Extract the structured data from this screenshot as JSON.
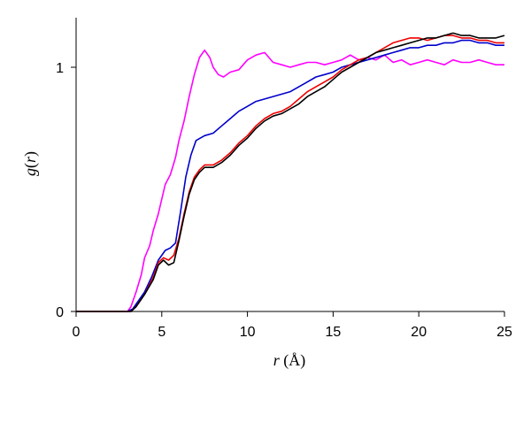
{
  "chart_data": {
    "type": "line",
    "xlabel": {
      "italic": "r",
      "rest": " (Å)"
    },
    "ylabel": {
      "prefix": "g(",
      "italic": "r",
      "suffix": ")"
    },
    "xlim": [
      0,
      25
    ],
    "ylim": [
      0,
      1.2
    ],
    "x_ticks": [
      0,
      5,
      10,
      15,
      20,
      25
    ],
    "y_ticks": [
      0,
      1
    ],
    "grid": false,
    "legend": "none",
    "series": [
      {
        "color": "#ff00ff",
        "x": [
          0,
          3.0,
          3.2,
          3.5,
          3.8,
          4.0,
          4.3,
          4.5,
          4.8,
          5.0,
          5.2,
          5.5,
          5.8,
          6.0,
          6.3,
          6.6,
          6.9,
          7.2,
          7.5,
          7.8,
          8.0,
          8.3,
          8.6,
          9.0,
          9.5,
          10.0,
          10.5,
          11.0,
          11.5,
          12.0,
          12.5,
          13.0,
          13.5,
          14.0,
          14.5,
          15.0,
          15.5,
          16.0,
          16.5,
          17.0,
          17.5,
          18.0,
          18.5,
          19.0,
          19.5,
          20.0,
          20.5,
          21.0,
          21.5,
          22.0,
          22.5,
          23.0,
          23.5,
          24.0,
          24.5,
          25.0
        ],
        "y": [
          0,
          0,
          0.02,
          0.08,
          0.15,
          0.22,
          0.27,
          0.33,
          0.4,
          0.46,
          0.52,
          0.56,
          0.63,
          0.7,
          0.78,
          0.88,
          0.97,
          1.04,
          1.07,
          1.04,
          1.0,
          0.97,
          0.96,
          0.98,
          0.99,
          1.03,
          1.05,
          1.06,
          1.02,
          1.01,
          1.0,
          1.01,
          1.02,
          1.02,
          1.01,
          1.02,
          1.03,
          1.05,
          1.03,
          1.04,
          1.03,
          1.05,
          1.02,
          1.03,
          1.01,
          1.02,
          1.03,
          1.02,
          1.01,
          1.03,
          1.02,
          1.02,
          1.03,
          1.02,
          1.01,
          1.01
        ]
      },
      {
        "color": "#0000cc",
        "x": [
          0,
          3.0,
          3.3,
          3.6,
          4.0,
          4.4,
          4.8,
          5.2,
          5.5,
          5.8,
          6.1,
          6.4,
          6.7,
          7.0,
          7.5,
          8.0,
          8.5,
          9.0,
          9.5,
          10.0,
          10.5,
          11.0,
          11.5,
          12.0,
          12.5,
          13.0,
          13.5,
          14.0,
          14.5,
          15.0,
          15.5,
          16.0,
          16.5,
          17.0,
          17.5,
          18.0,
          18.5,
          19.0,
          19.5,
          20.0,
          20.5,
          21.0,
          21.5,
          22.0,
          22.5,
          23.0,
          23.5,
          24.0,
          24.5,
          25.0
        ],
        "y": [
          0,
          0,
          0.01,
          0.04,
          0.08,
          0.14,
          0.21,
          0.25,
          0.26,
          0.28,
          0.41,
          0.55,
          0.64,
          0.7,
          0.72,
          0.73,
          0.76,
          0.79,
          0.82,
          0.84,
          0.86,
          0.87,
          0.88,
          0.89,
          0.9,
          0.92,
          0.94,
          0.96,
          0.97,
          0.98,
          1.0,
          1.01,
          1.02,
          1.03,
          1.04,
          1.05,
          1.06,
          1.07,
          1.08,
          1.08,
          1.09,
          1.09,
          1.1,
          1.1,
          1.11,
          1.11,
          1.1,
          1.1,
          1.09,
          1.09
        ]
      },
      {
        "color": "#ee0000",
        "x": [
          0,
          3.2,
          3.5,
          4.0,
          4.5,
          4.8,
          5.1,
          5.4,
          5.7,
          6.0,
          6.3,
          6.6,
          6.9,
          7.2,
          7.5,
          8.0,
          8.5,
          9.0,
          9.5,
          10.0,
          10.5,
          11.0,
          11.5,
          12.0,
          12.5,
          13.0,
          13.5,
          14.0,
          14.5,
          15.0,
          15.5,
          16.0,
          16.5,
          17.0,
          17.5,
          18.0,
          18.5,
          19.0,
          19.5,
          20.0,
          20.5,
          21.0,
          21.5,
          22.0,
          22.5,
          23.0,
          23.5,
          24.0,
          24.5,
          25.0
        ],
        "y": [
          0,
          0,
          0.02,
          0.07,
          0.14,
          0.2,
          0.22,
          0.21,
          0.23,
          0.3,
          0.4,
          0.49,
          0.55,
          0.58,
          0.6,
          0.6,
          0.62,
          0.65,
          0.69,
          0.72,
          0.76,
          0.79,
          0.81,
          0.82,
          0.84,
          0.87,
          0.9,
          0.92,
          0.94,
          0.96,
          0.99,
          1.01,
          1.03,
          1.04,
          1.06,
          1.08,
          1.1,
          1.11,
          1.12,
          1.12,
          1.11,
          1.12,
          1.13,
          1.13,
          1.12,
          1.12,
          1.11,
          1.11,
          1.1,
          1.1
        ]
      },
      {
        "color": "#000000",
        "x": [
          0,
          3.2,
          3.5,
          4.0,
          4.5,
          4.8,
          5.1,
          5.4,
          5.7,
          6.0,
          6.3,
          6.6,
          6.9,
          7.2,
          7.5,
          8.0,
          8.5,
          9.0,
          9.5,
          10.0,
          10.5,
          11.0,
          11.5,
          12.0,
          12.5,
          13.0,
          13.5,
          14.0,
          14.5,
          15.0,
          15.5,
          16.0,
          16.5,
          17.0,
          17.5,
          18.0,
          18.5,
          19.0,
          19.5,
          20.0,
          20.5,
          21.0,
          21.5,
          22.0,
          22.5,
          23.0,
          23.5,
          24.0,
          24.5,
          25.0
        ],
        "y": [
          0,
          0,
          0.02,
          0.07,
          0.13,
          0.19,
          0.21,
          0.19,
          0.2,
          0.29,
          0.39,
          0.48,
          0.54,
          0.57,
          0.59,
          0.59,
          0.61,
          0.64,
          0.68,
          0.71,
          0.75,
          0.78,
          0.8,
          0.81,
          0.83,
          0.85,
          0.88,
          0.9,
          0.92,
          0.95,
          0.98,
          1.0,
          1.02,
          1.04,
          1.06,
          1.07,
          1.08,
          1.09,
          1.1,
          1.11,
          1.12,
          1.12,
          1.13,
          1.14,
          1.13,
          1.13,
          1.12,
          1.12,
          1.12,
          1.13
        ]
      }
    ]
  }
}
